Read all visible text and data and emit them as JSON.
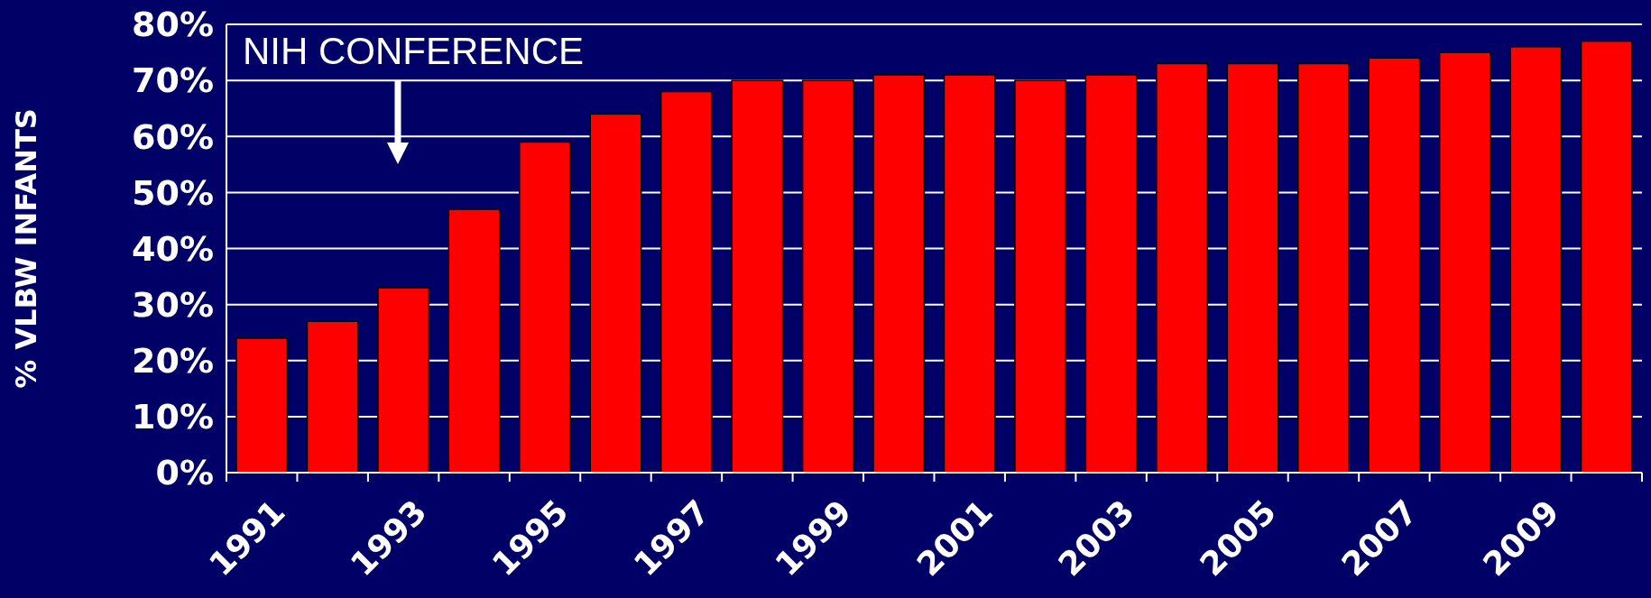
{
  "chart_data": {
    "type": "bar",
    "ylabel": "% VLBW INFANTS",
    "categories": [
      "1991",
      null,
      "1993",
      null,
      "1995",
      null,
      "1997",
      null,
      "1999",
      null,
      "2001",
      null,
      "2003",
      null,
      "2005",
      null,
      "2007",
      null,
      "2009",
      null
    ],
    "values": [
      24,
      27,
      33,
      47,
      59,
      64,
      68,
      70,
      70,
      71,
      71,
      70,
      71,
      73,
      73,
      73,
      74,
      75,
      76,
      77
    ],
    "color": "#ff0000",
    "ylim": [
      0,
      80
    ],
    "yticks": [
      {
        "value": 0,
        "label": "0%"
      },
      {
        "value": 10,
        "label": "10%"
      },
      {
        "value": 20,
        "label": "20%"
      },
      {
        "value": 30,
        "label": "30%"
      },
      {
        "value": 40,
        "label": "40%"
      },
      {
        "value": 50,
        "label": "50%"
      },
      {
        "value": 60,
        "label": "60%"
      },
      {
        "value": 70,
        "label": "70%"
      },
      {
        "value": 80,
        "label": "80%"
      }
    ],
    "grid": "y",
    "annotations": [
      "NIH CONFERENCE"
    ]
  }
}
